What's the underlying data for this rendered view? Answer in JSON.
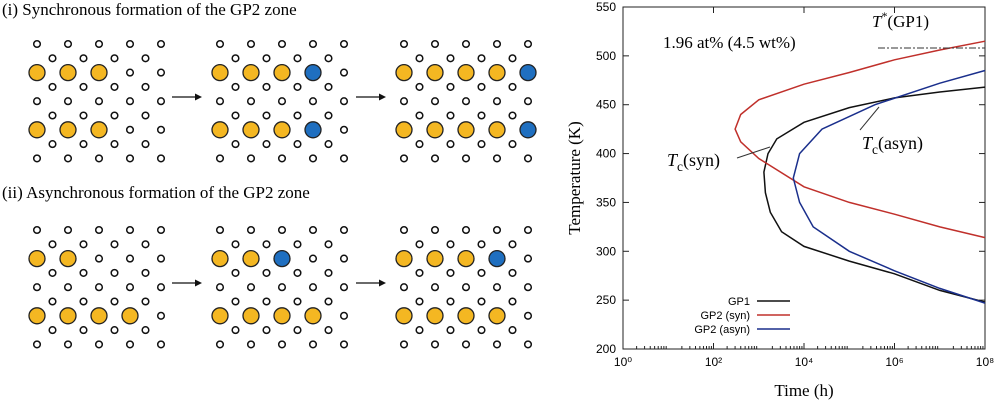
{
  "diagram": {
    "panels": [
      {
        "title": "(i) Synchronous formation of the GP2 zone"
      },
      {
        "title": "(ii) Asynchronous formation of the GP2 zone"
      }
    ]
  },
  "chart_data": {
    "type": "line",
    "x_label": "Time (h)",
    "y_label": "Temperature (K)",
    "x_scale": "log",
    "xlim": [
      1,
      100000000
    ],
    "xticks": [
      {
        "value": 1,
        "label": "10⁰"
      },
      {
        "value": 100,
        "label": "10²"
      },
      {
        "value": 10000,
        "label": "10⁴"
      },
      {
        "value": 1000000,
        "label": "10⁶"
      },
      {
        "value": 100000000,
        "label": "10⁸"
      }
    ],
    "ylim": [
      200,
      550
    ],
    "yticks": [
      200,
      250,
      300,
      350,
      400,
      450,
      500,
      550
    ],
    "legend": "lower left",
    "series": [
      {
        "name": "GP1",
        "color": "#111111",
        "x": [
          100000000,
          10000000,
          1000000,
          100000,
          10000,
          3200,
          1800,
          1400,
          1300,
          1600,
          2500,
          10000,
          100000,
          1000000,
          10000000,
          100000000
        ],
        "values": [
          248,
          260,
          277,
          290,
          305,
          320,
          340,
          360,
          381,
          400,
          415,
          432,
          447,
          457,
          463,
          468
        ]
      },
      {
        "name": "GP2 (syn)",
        "color": "#c0302b",
        "x": [
          100000000,
          10000000,
          1000000,
          100000,
          10000,
          1000,
          400,
          300,
          400,
          1000,
          10000,
          100000,
          1000000,
          10000000,
          100000000
        ],
        "values": [
          314,
          325,
          338,
          350,
          366,
          395,
          412,
          425,
          440,
          455,
          471,
          483,
          496,
          506,
          515
        ]
      },
      {
        "name": "GP2 (asyn)",
        "color": "#1a2f8c",
        "x": [
          100000000,
          10000000,
          1000000,
          100000,
          16000,
          8000,
          5800,
          8000,
          25000,
          370000,
          10000000,
          100000000
        ],
        "values": [
          247,
          262,
          280,
          300,
          325,
          350,
          375,
          400,
          425,
          450,
          472,
          485
        ]
      }
    ],
    "annotations": [
      {
        "text": "1.96 at% (4.5 wt%)"
      },
      {
        "symbol": "T",
        "sup": "*",
        "text": "(GP1)",
        "value": 508
      },
      {
        "symbol": "T",
        "sub": "c",
        "text": "(syn)"
      },
      {
        "symbol": "T",
        "sub": "c",
        "text": "(asyn)"
      }
    ]
  }
}
